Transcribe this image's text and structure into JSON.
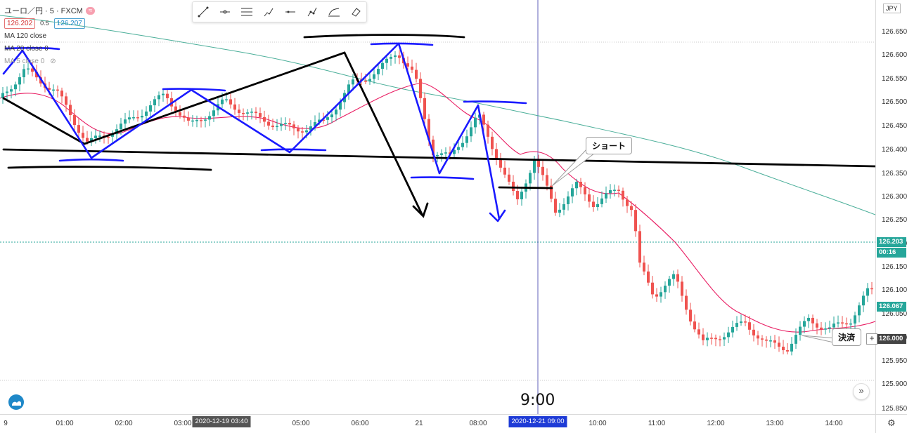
{
  "symbol": {
    "title": "ユーロ／円 · 5 · FXCM",
    "bid": "126.202",
    "spread": "0.5",
    "ask": "126.207",
    "badge": "≈"
  },
  "indicators": [
    {
      "label": "MA 120 close"
    },
    {
      "label": "MA 20 close 0"
    },
    {
      "label": "MA 5 close 0"
    }
  ],
  "toolbar": [
    {
      "icon": "trend-line-icon"
    },
    {
      "icon": "horizontal-ray-icon"
    },
    {
      "icon": "parallel-channel-icon"
    },
    {
      "icon": "pitchfork-icon"
    },
    {
      "icon": "horizontal-line-icon"
    },
    {
      "icon": "path-icon"
    },
    {
      "icon": "fib-icon"
    },
    {
      "icon": "eraser-icon"
    }
  ],
  "price_axis": {
    "currency": "JPY",
    "ticks": [
      "126.650",
      "126.600",
      "126.550",
      "126.500",
      "126.450",
      "126.400",
      "126.350",
      "126.300",
      "126.250",
      "126.200",
      "126.150",
      "126.100",
      "126.050",
      "126.000",
      "125.950",
      "125.900",
      "125.850"
    ],
    "current_price": "126.203",
    "countdown": "00:16",
    "ma_price": "126.067",
    "crosshair_price": "126.000"
  },
  "time_axis": {
    "ticks": [
      "9",
      "01:00",
      "02:00",
      "03:00",
      "05:00",
      "06:00",
      "21",
      "08:00",
      "10:00",
      "11:00",
      "12:00",
      "13:00",
      "14:00"
    ],
    "label_past": "2020-12-19 03:40",
    "label_cursor": "2020-12-21 09:00"
  },
  "annotations": {
    "short": "ショート",
    "settle": "決済",
    "time": "9:00"
  },
  "colors": {
    "up": "#26a69a",
    "down": "#ef5350",
    "ma20": "#e91e63",
    "ma120": "#4caf9a",
    "drawing_blue": "#1a1aff",
    "drawing_black": "#000000"
  }
}
